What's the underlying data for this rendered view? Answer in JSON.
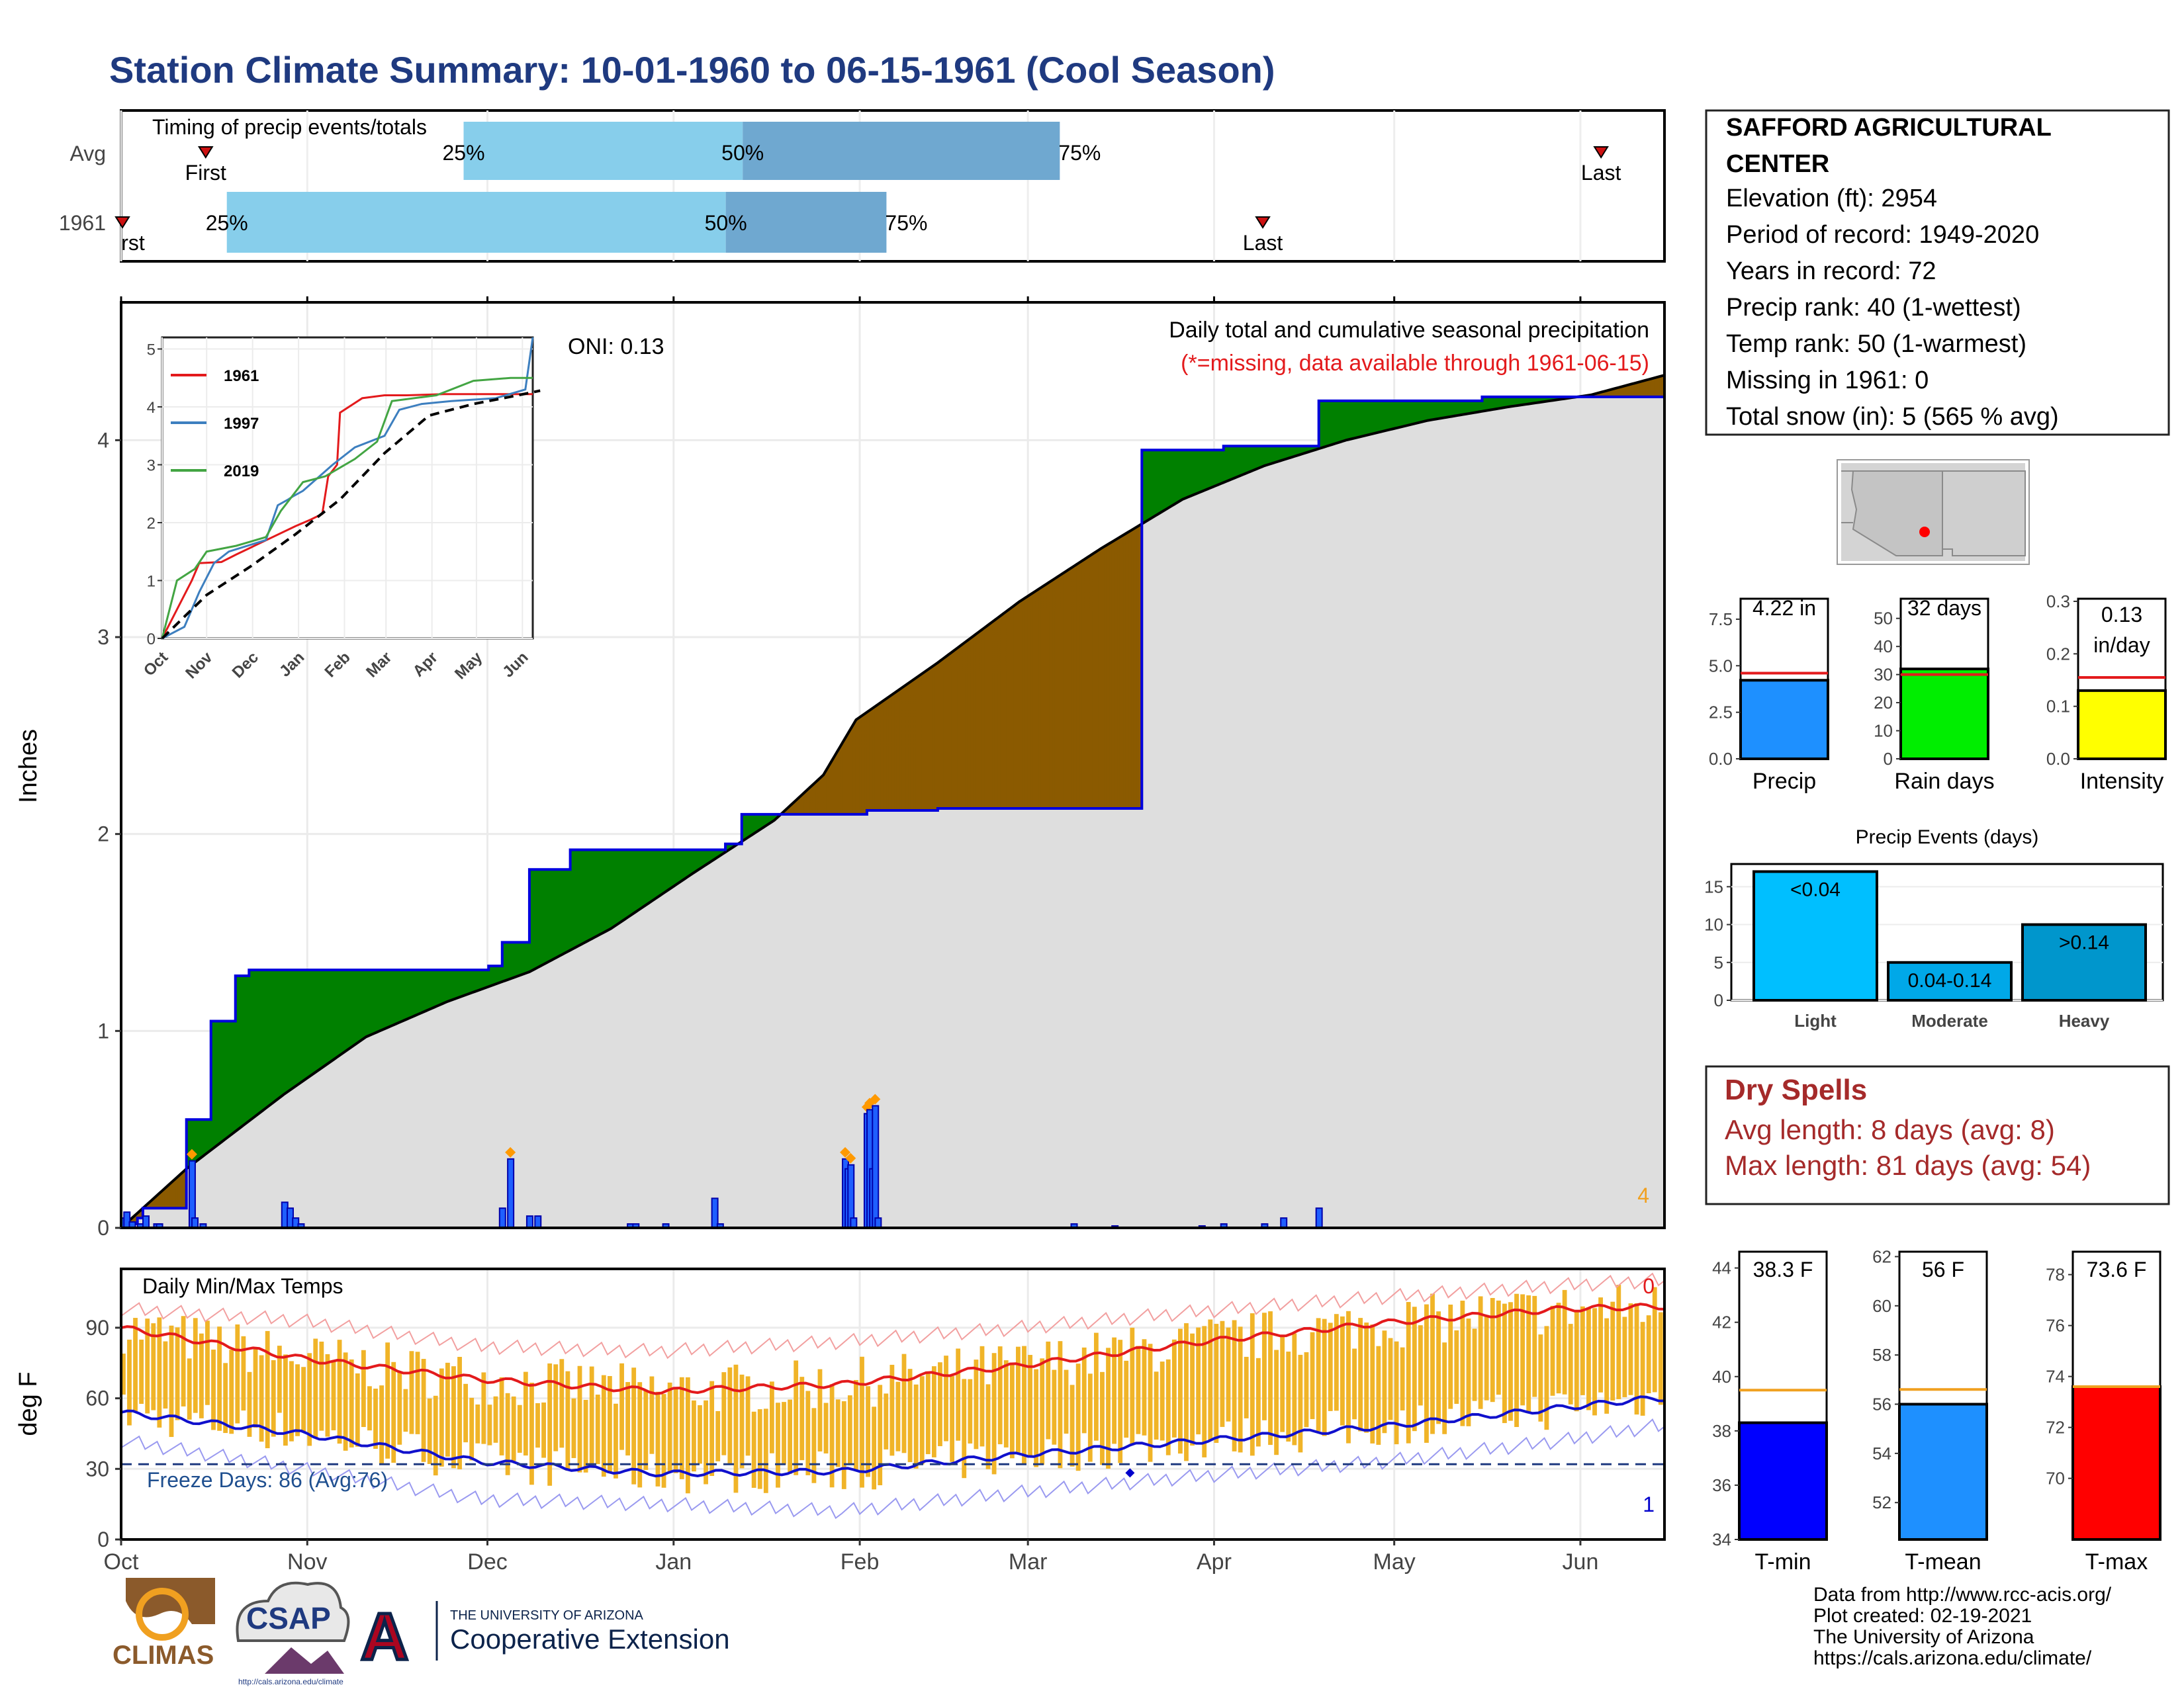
{
  "title": "Station Climate Summary: 10-01-1960 to 06-15-1961 (Cool Season)",
  "timing": {
    "label": "Timing of precip events/totals",
    "rows": [
      {
        "name": "Avg",
        "first_day": 20,
        "p25_day": 81,
        "p50_day": 147,
        "p75_day": 222,
        "last_day": 350
      },
      {
        "name": "1961",
        "first_day": 0,
        "p25_day": 25,
        "p50_day": 143,
        "p75_day": 181,
        "last_day": 270
      }
    ],
    "first_label": "First",
    "last_label": "Last",
    "first_label_clipped": "rst",
    "p25_label": "25%",
    "p50_label": "50%",
    "p75_label": "75%"
  },
  "main": {
    "y_label": "Inches",
    "y_ticks": [
      "0",
      "1",
      "2",
      "3",
      "4"
    ],
    "x_ticks": [
      "Oct",
      "Nov",
      "Dec",
      "Jan",
      "Feb",
      "Mar",
      "Apr",
      "May",
      "Jun"
    ],
    "oni": "ONI: 0.13",
    "caption": "Daily total and cumulative seasonal precipitation",
    "missing_note": "(*=missing, data available through 1961-06-15)",
    "corner_count": "4"
  },
  "chart_data": [
    {
      "type": "area",
      "title": "Daily total and cumulative seasonal precipitation",
      "ylabel": "Inches",
      "ylim": [
        0,
        4.7
      ],
      "x_unit": "day of season (day 0 = 1960-10-01)",
      "series": [
        {
          "name": "1961 cumulative",
          "x": [
            0,
            6,
            8,
            24,
            33,
            42,
            47,
            135,
            140,
            150,
            165,
            222,
            228,
            274,
            300,
            375,
            405,
            440,
            500,
            548,
            567
          ],
          "y": [
            0.02,
            0.05,
            0.1,
            0.55,
            1.05,
            1.28,
            1.31,
            1.33,
            1.45,
            1.82,
            1.92,
            1.95,
            2.1,
            2.12,
            2.13,
            3.95,
            3.97,
            4.2,
            4.22,
            4.22,
            4.22
          ]
        },
        {
          "name": "average cumulative",
          "x": [
            0,
            24,
            60,
            90,
            120,
            150,
            180,
            210,
            240,
            258,
            270,
            300,
            330,
            360,
            390,
            420,
            450,
            480,
            510,
            540,
            567
          ],
          "y": [
            0.0,
            0.3,
            0.68,
            0.97,
            1.15,
            1.3,
            1.52,
            1.8,
            2.07,
            2.3,
            2.58,
            2.87,
            3.18,
            3.45,
            3.7,
            3.87,
            4.0,
            4.1,
            4.17,
            4.23,
            4.33
          ]
        },
        {
          "name": "daily precip",
          "x": [
            1,
            2,
            4,
            7,
            9,
            13,
            14,
            26,
            27,
            30,
            60,
            62,
            64,
            66,
            140,
            143,
            150,
            153,
            187,
            189,
            200,
            218,
            220,
            266,
            267,
            268,
            269,
            274,
            275,
            276,
            277,
            278,
            350,
            365,
            397,
            405,
            420,
            427,
            440
          ],
          "y": [
            0.05,
            0.08,
            0.03,
            0.02,
            0.06,
            0.02,
            0.02,
            0.34,
            0.05,
            0.02,
            0.13,
            0.1,
            0.05,
            0.02,
            0.1,
            0.35,
            0.06,
            0.06,
            0.02,
            0.02,
            0.02,
            0.15,
            0.02,
            0.35,
            0.3,
            0.32,
            0.05,
            0.58,
            0.6,
            0.3,
            0.62,
            0.05,
            0.02,
            0.01,
            0.01,
            0.02,
            0.02,
            0.05,
            0.1
          ]
        }
      ]
    },
    {
      "type": "line",
      "title": "",
      "xlabel": "",
      "ylabel": "",
      "ylim": [
        0,
        5
      ],
      "x_ticks": [
        "Oct",
        "Nov",
        "Dec",
        "Jan",
        "Feb",
        "Mar",
        "Apr",
        "May",
        "Jun"
      ],
      "y_ticks": [
        "0",
        "1",
        "2",
        "3",
        "4",
        "5"
      ],
      "series": [
        {
          "name": "1961",
          "color": "#e31a1c",
          "x": [
            0,
            10,
            20,
            25,
            40,
            50,
            90,
            100,
            108,
            112,
            118,
            120,
            135,
            150,
            165,
            190,
            250
          ],
          "y": [
            0,
            0.5,
            1.0,
            1.3,
            1.32,
            1.45,
            1.94,
            2.05,
            2.15,
            2.8,
            3.0,
            3.9,
            4.15,
            4.2,
            4.2,
            4.22,
            4.22
          ]
        },
        {
          "name": "1997",
          "color": "#3d7fbf",
          "x": [
            0,
            15,
            25,
            35,
            45,
            70,
            78,
            85,
            88,
            95,
            115,
            130,
            150,
            160,
            175,
            195,
            225,
            245,
            250
          ],
          "y": [
            0,
            0.2,
            0.8,
            1.3,
            1.5,
            1.7,
            2.3,
            2.4,
            2.45,
            2.55,
            3.0,
            3.3,
            3.5,
            3.95,
            4.05,
            4.1,
            4.15,
            4.3,
            5.2
          ]
        },
        {
          "name": "2019",
          "color": "#43a543",
          "x": [
            0,
            10,
            22,
            30,
            50,
            70,
            80,
            95,
            110,
            130,
            145,
            155,
            185,
            210,
            235,
            250
          ],
          "y": [
            0,
            1.0,
            1.2,
            1.5,
            1.6,
            1.75,
            2.2,
            2.7,
            2.8,
            3.1,
            3.4,
            4.1,
            4.2,
            4.45,
            4.5,
            4.5
          ]
        },
        {
          "name": "avg",
          "color": "#000000",
          "dashed": true,
          "x": [
            0,
            30,
            60,
            90,
            120,
            150,
            180,
            210,
            240,
            255
          ],
          "y": [
            0,
            0.75,
            1.25,
            1.8,
            2.4,
            3.2,
            3.85,
            4.05,
            4.2,
            4.28
          ]
        }
      ]
    },
    {
      "type": "bar",
      "title": "Daily Min/Max Temps",
      "ylabel": "deg F",
      "ylim": [
        0,
        115
      ],
      "y_ticks": [
        "0",
        "30",
        "60",
        "90"
      ],
      "x_ticks": [
        "Oct",
        "Nov",
        "Dec",
        "Jan",
        "Feb",
        "Mar",
        "Apr",
        "May",
        "Jun"
      ],
      "freeze_days": "Freeze Days: 86 (Avg:76)",
      "freeze_line": 32,
      "corner_top": "0",
      "corner_bottom": "1",
      "avg_max": {
        "x": [
          0,
          30,
          60,
          90,
          120,
          150,
          180,
          210,
          240,
          255
        ],
        "y": [
          90,
          77,
          68,
          63,
          66,
          74,
          84,
          92,
          98,
          99
        ]
      },
      "avg_min": {
        "x": [
          0,
          30,
          60,
          90,
          120,
          150,
          180,
          210,
          240,
          255
        ],
        "y": [
          54,
          45,
          33,
          28,
          29,
          36,
          42,
          48,
          56,
          60
        ]
      },
      "rec_max": {
        "x": [
          0,
          30,
          60,
          90,
          120,
          150,
          180,
          210,
          240,
          255
        ],
        "y": [
          98,
          93,
          82,
          80,
          84,
          90,
          97,
          103,
          108,
          110
        ]
      },
      "rec_min": {
        "x": [
          0,
          30,
          60,
          90,
          120,
          150,
          180,
          210,
          240,
          255
        ],
        "y": [
          42,
          30,
          17,
          15,
          12,
          20,
          27,
          33,
          42,
          48
        ]
      }
    },
    {
      "type": "bar",
      "title": "Precip",
      "categories": [
        "Precip"
      ],
      "values": [
        4.22
      ],
      "avg": 4.6,
      "ylim": [
        0,
        8.6
      ],
      "y_ticks": [
        "0.0",
        "2.5",
        "5.0",
        "7.5"
      ],
      "label": "4.22 in"
    },
    {
      "type": "bar",
      "title": "Rain days",
      "categories": [
        "Rain days"
      ],
      "values": [
        32
      ],
      "avg": 30,
      "ylim": [
        0,
        57
      ],
      "y_ticks": [
        "0",
        "10",
        "20",
        "30",
        "40",
        "50"
      ],
      "label": "32 days"
    },
    {
      "type": "bar",
      "title": "Intensity",
      "categories": [
        "Intensity"
      ],
      "values": [
        0.13
      ],
      "avg": 0.155,
      "ylim": [
        0,
        0.305
      ],
      "y_ticks": [
        "0.0",
        "0.1",
        "0.2",
        "0.3"
      ],
      "label_line1": "0.13",
      "label_line2": "in/day"
    },
    {
      "type": "bar",
      "title": "Precip Events (days)",
      "categories": [
        "Light",
        "Moderate",
        "Heavy"
      ],
      "values": [
        17,
        5,
        10
      ],
      "bar_labels": [
        "<0.04",
        "0.04-0.14",
        ">0.14"
      ],
      "ylim": [
        0,
        18
      ],
      "y_ticks": [
        "0",
        "5",
        "10",
        "15"
      ]
    },
    {
      "type": "bar",
      "title": "T-min",
      "categories": [
        "T-min"
      ],
      "values": [
        38.3
      ],
      "avg": 39.5,
      "ylim": [
        34,
        44.6
      ],
      "y_ticks": [
        "34",
        "36",
        "38",
        "40",
        "42",
        "44"
      ],
      "label": "38.3 F"
    },
    {
      "type": "bar",
      "title": "T-mean",
      "categories": [
        "T-mean"
      ],
      "values": [
        56
      ],
      "avg": 56.6,
      "ylim": [
        50.5,
        62.2
      ],
      "y_ticks": [
        "52",
        "54",
        "56",
        "58",
        "60",
        "62"
      ],
      "label": "56 F"
    },
    {
      "type": "bar",
      "title": "T-max",
      "categories": [
        "T-max"
      ],
      "values": [
        73.6
      ],
      "avg": 73.6,
      "ylim": [
        67.6,
        78.9
      ],
      "y_ticks": [
        "70",
        "72",
        "74",
        "76",
        "78"
      ],
      "label": "73.6 F"
    }
  ],
  "station": {
    "name_line1": "SAFFORD AGRICULTURAL",
    "name_line2": "CENTER",
    "lines": [
      "Elevation (ft): 2954",
      "Period of record: 1949-2020",
      "Years in record: 72",
      "Precip rank: 40 (1-wettest)",
      "Temp rank: 50 (1-warmest)",
      "Missing in 1961: 0",
      "Total snow (in): 5 (565 % avg)"
    ]
  },
  "dry_spells": {
    "title": "Dry Spells",
    "avg_length": "Avg length: 8 days (avg: 8)",
    "max_length": "Max length: 81 days (avg: 54)"
  },
  "footer": {
    "lines": [
      "Data from http://www.rcc-acis.org/",
      "Plot created: 02-19-2021",
      "The University of Arizona",
      "https://cals.arizona.edu/climate/"
    ],
    "climas": "CLIMAS",
    "csap": "CSAP",
    "csap_url": "http://cals.arizona.edu/climate",
    "ua_line1": "THE UNIVERSITY OF ARIZONA",
    "ua_line2": "Cooperative Extension",
    "ua_logo": "A"
  },
  "colors": {
    "title": "#1f3a80",
    "green": "#008000",
    "brown": "#8b5a00",
    "gray": "#dedede",
    "blue_line": "#0000dd",
    "light_blue": "#87ceeb",
    "mid_blue": "#6fa8d0",
    "temp_bar": "#f0b428",
    "red": "#e31a1c",
    "dark_red": "#a52a2a"
  }
}
